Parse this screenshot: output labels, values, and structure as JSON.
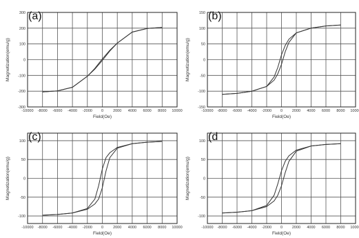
{
  "chart_data": [
    {
      "type": "line",
      "panel_label": "(a)",
      "xlabel": "Field(Oe)",
      "ylabel": "Magnetization(emu/g)",
      "xlim": [
        -10000,
        10000
      ],
      "ylim": [
        -300,
        300
      ],
      "xticks": [
        -10000,
        -8000,
        -6000,
        -4000,
        -2000,
        0,
        2000,
        4000,
        6000,
        8000,
        10000
      ],
      "yticks": [
        -300,
        -200,
        -100,
        0,
        100,
        200,
        300
      ],
      "xtick_labels": [
        "-10000",
        "-8000",
        "-6000",
        "-4000",
        "-2000",
        "0",
        "2000",
        "4000",
        "6000",
        "8000",
        "10000"
      ],
      "ytick_labels": [
        "-300",
        "-200",
        "-100",
        "0",
        "100",
        "200",
        "300"
      ],
      "grid": true,
      "series": [
        {
          "x": [
            -8000,
            -6000,
            -4000,
            -2000,
            -1000,
            0,
            1000,
            2000,
            4000,
            6000,
            8000
          ],
          "y": [
            -205,
            -198,
            -175,
            -105,
            -60,
            -5,
            55,
            105,
            175,
            198,
            205
          ]
        },
        {
          "x": [
            -8000,
            -6000,
            -4000,
            -2000,
            -1000,
            0,
            1000,
            2000,
            4000,
            6000,
            8000
          ],
          "y": [
            -205,
            -198,
            -175,
            -105,
            -55,
            5,
            60,
            105,
            175,
            198,
            205
          ]
        }
      ]
    },
    {
      "type": "line",
      "panel_label": "(b)",
      "xlabel": "Field(Oe)",
      "ylabel": "Magnetization(emu/g)",
      "xlim": [
        -10000,
        10000
      ],
      "ylim": [
        -150,
        150
      ],
      "xticks": [
        -10000,
        -8000,
        -6000,
        -4000,
        -2000,
        0,
        2000,
        4000,
        6000,
        8000,
        10000
      ],
      "yticks": [
        -150,
        -100,
        -50,
        0,
        50,
        100,
        150
      ],
      "xtick_labels": [
        "-10000",
        "-8000",
        "-6000",
        "-4000",
        "-2000",
        "0",
        "2000",
        "4000",
        "6000",
        "8000",
        "10000"
      ],
      "ytick_labels": [
        "-150",
        "-100",
        "-50",
        "0",
        "50",
        "100",
        "150"
      ],
      "grid": true,
      "series": [
        {
          "x": [
            -8000,
            -6000,
            -4000,
            -2000,
            -1000,
            -500,
            0,
            500,
            1000,
            2000,
            4000,
            6000,
            8000
          ],
          "y": [
            -110,
            -107,
            -100,
            -85,
            -65,
            -45,
            -15,
            25,
            55,
            85,
            100,
            107,
            110
          ]
        },
        {
          "x": [
            -8000,
            -6000,
            -4000,
            -2000,
            -1000,
            -500,
            0,
            500,
            1000,
            2000,
            4000,
            6000,
            8000
          ],
          "y": [
            -110,
            -107,
            -100,
            -85,
            -55,
            -25,
            15,
            45,
            65,
            85,
            100,
            107,
            110
          ]
        }
      ]
    },
    {
      "type": "line",
      "panel_label": "(c)",
      "xlabel": "Field(Oe)",
      "ylabel": "Magnetization(emu/g)",
      "xlim": [
        -10000,
        10000
      ],
      "ylim": [
        -120,
        120
      ],
      "xticks": [
        -10000,
        -8000,
        -6000,
        -4000,
        -2000,
        0,
        2000,
        4000,
        6000,
        8000,
        10000
      ],
      "yticks": [
        -100,
        -50,
        0,
        50,
        100
      ],
      "xtick_labels": [
        "-10000",
        "-8000",
        "-6000",
        "-4000",
        "-2000",
        "0",
        "2000",
        "4000",
        "6000",
        "8000",
        "10000"
      ],
      "ytick_labels": [
        "-100",
        "-50",
        "0",
        "50",
        "100"
      ],
      "grid": true,
      "series": [
        {
          "x": [
            -8000,
            -6000,
            -4000,
            -2000,
            -1000,
            -500,
            0,
            500,
            1000,
            2000,
            4000,
            6000,
            8000
          ],
          "y": [
            -98,
            -96,
            -92,
            -82,
            -68,
            -55,
            -25,
            20,
            55,
            80,
            92,
            96,
            98
          ]
        },
        {
          "x": [
            -8000,
            -6000,
            -4000,
            -2000,
            -1000,
            -500,
            0,
            500,
            1000,
            2000,
            4000,
            6000,
            8000
          ],
          "y": [
            -98,
            -96,
            -92,
            -80,
            -55,
            -20,
            25,
            55,
            68,
            82,
            92,
            96,
            98
          ]
        }
      ]
    },
    {
      "type": "line",
      "panel_label": "(d",
      "xlabel": "Field(Oe)",
      "ylabel": "Magnetization(emu/g)",
      "xlim": [
        -10000,
        10000
      ],
      "ylim": [
        -120,
        120
      ],
      "xticks": [
        -10000,
        -8000,
        -6000,
        -4000,
        -2000,
        0,
        2000,
        4000,
        6000,
        8000,
        10000
      ],
      "yticks": [
        -100,
        -50,
        0,
        50,
        100
      ],
      "xtick_labels": [
        "-10000",
        "-8000",
        "-6000",
        "-4000",
        "-2000",
        "0",
        "2000",
        "4000",
        "6000",
        "8000",
        "10000"
      ],
      "ytick_labels": [
        "-100",
        "-50",
        "0",
        "50",
        "100"
      ],
      "grid": true,
      "series": [
        {
          "x": [
            -8000,
            -6000,
            -4000,
            -2000,
            -1000,
            -500,
            0,
            500,
            1000,
            2000,
            4000,
            6000,
            8000
          ],
          "y": [
            -92,
            -90,
            -86,
            -75,
            -60,
            -45,
            -20,
            15,
            45,
            72,
            86,
            90,
            92
          ]
        },
        {
          "x": [
            -8000,
            -6000,
            -4000,
            -2000,
            -1000,
            -500,
            0,
            500,
            1000,
            2000,
            4000,
            6000,
            8000
          ],
          "y": [
            -92,
            -90,
            -86,
            -72,
            -45,
            -15,
            20,
            45,
            60,
            75,
            86,
            90,
            92
          ]
        }
      ]
    }
  ]
}
